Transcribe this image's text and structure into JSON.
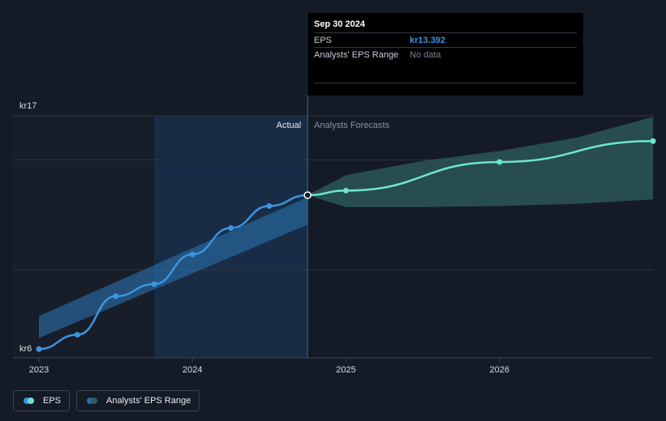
{
  "tooltip": {
    "date": "Sep 30 2024",
    "rows": [
      {
        "label": "EPS",
        "value": "kr13.392"
      },
      {
        "label": "Analysts' EPS Range",
        "value": "No data"
      }
    ]
  },
  "legend": {
    "eps_label": "EPS",
    "range_label": "Analysts' EPS Range"
  },
  "colors": {
    "background": "#151b26",
    "actual_line": "#3b95e0",
    "forecast_line": "#6ee6cf",
    "actual_band": "#2b6fae",
    "forecast_band": "#2f5f5d",
    "grid": "#2e3542"
  },
  "chart_data": {
    "type": "line",
    "region_labels": {
      "actual": "Actual",
      "forecast": "Analysts Forecasts"
    },
    "x_ticks": [
      {
        "label": "2023",
        "value": 2023.0
      },
      {
        "label": "2024",
        "value": 2024.0
      },
      {
        "label": "2025",
        "value": 2025.0
      },
      {
        "label": "2026",
        "value": 2026.0
      }
    ],
    "y_ticks": [
      {
        "label": "kr17",
        "value": 17
      },
      {
        "label": "kr6",
        "value": 6
      }
    ],
    "xlim": [
      2022.98,
      2027.0
    ],
    "ylim": [
      6,
      17
    ],
    "gridlines": [
      17,
      15,
      10,
      6
    ],
    "divider_x": 2024.75,
    "series": [
      {
        "name": "EPS",
        "role": "actual",
        "x": [
          2023.0,
          2023.25,
          2023.5,
          2023.75,
          2024.0,
          2024.25,
          2024.5,
          2024.75
        ],
        "y": [
          6.4,
          7.05,
          8.8,
          9.35,
          10.7,
          11.9,
          12.9,
          13.392
        ]
      },
      {
        "name": "EPS",
        "role": "forecast",
        "x": [
          2024.75,
          2025.0,
          2026.0,
          2027.0
        ],
        "y": [
          13.392,
          13.6,
          14.9,
          15.85
        ]
      }
    ],
    "bands": [
      {
        "name": "Analysts' EPS Range",
        "role": "actual",
        "x": [
          2023.0,
          2024.75
        ],
        "low": [
          6.9,
          12.05
        ],
        "high": [
          7.9,
          13.3
        ]
      },
      {
        "name": "Analysts' EPS Range",
        "role": "forecast",
        "x": [
          2024.75,
          2025.0,
          2025.5,
          2026.0,
          2026.5,
          2027.0
        ],
        "low": [
          13.392,
          12.85,
          12.85,
          12.9,
          13.0,
          13.2
        ],
        "high": [
          13.392,
          14.3,
          14.95,
          15.4,
          16.0,
          16.95
        ]
      }
    ]
  }
}
